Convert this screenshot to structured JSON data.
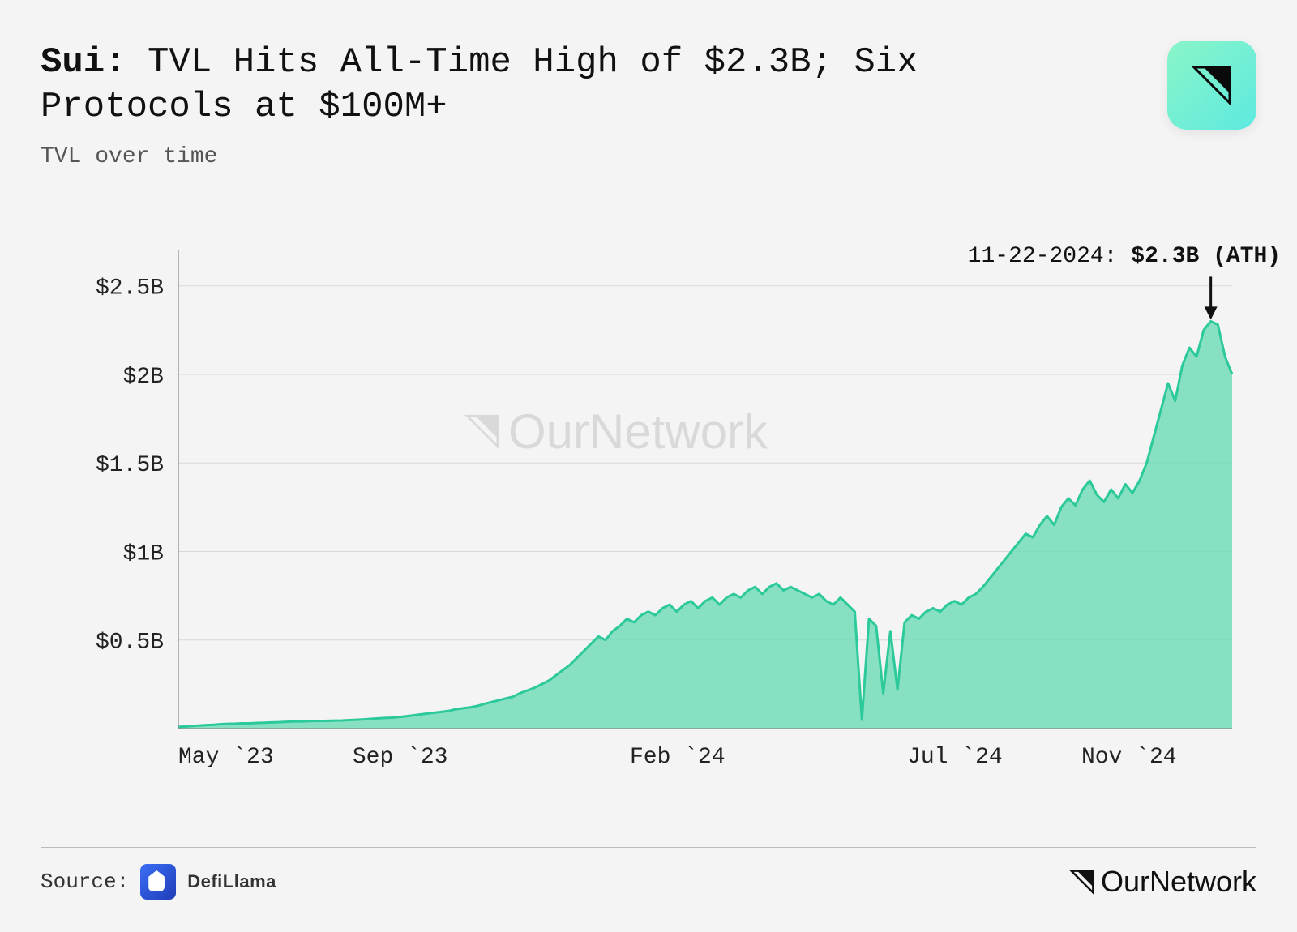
{
  "title_bold": "Sui:",
  "title_rest": " TVL Hits All-Time High of $2.3B; Six Protocols at $100M+",
  "subtitle": "TVL over time",
  "annotation_prefix": "11-22-2024: ",
  "annotation_bold": "$2.3B (ATH)",
  "source_label": "Source:",
  "source_name": "DefiLlama",
  "brand_name": "OurNetwork",
  "chart": {
    "type": "area",
    "line_color": "#2cc99a",
    "fill_color": "#74dcb8",
    "fill_opacity": 0.85,
    "line_width": 3,
    "background_color": "#f4f4f4",
    "grid_color": "#d8d8d8",
    "axis_color": "#888888",
    "tick_font_size": 28,
    "tick_color": "#222222",
    "ylim": [
      0,
      2.7
    ],
    "yticks": [
      0.5,
      1,
      1.5,
      2,
      2.5
    ],
    "ytick_labels": [
      "$0.5B",
      "$1B",
      "$1.5B",
      "$2B",
      "$2.5B"
    ],
    "x_range_months": 19,
    "xticks_months": [
      0,
      4,
      9,
      14,
      18
    ],
    "xtick_labels": [
      "May `23",
      "Sep `23",
      "Feb `24",
      "Jul `24",
      "Nov `24"
    ],
    "series": [
      0.01,
      0.012,
      0.015,
      0.018,
      0.02,
      0.022,
      0.025,
      0.027,
      0.028,
      0.03,
      0.03,
      0.032,
      0.033,
      0.035,
      0.036,
      0.038,
      0.04,
      0.04,
      0.042,
      0.043,
      0.043,
      0.044,
      0.045,
      0.046,
      0.048,
      0.05,
      0.052,
      0.055,
      0.058,
      0.06,
      0.062,
      0.065,
      0.07,
      0.075,
      0.08,
      0.085,
      0.09,
      0.095,
      0.1,
      0.11,
      0.115,
      0.12,
      0.128,
      0.14,
      0.15,
      0.16,
      0.17,
      0.18,
      0.2,
      0.215,
      0.23,
      0.25,
      0.27,
      0.3,
      0.33,
      0.36,
      0.4,
      0.44,
      0.48,
      0.52,
      0.5,
      0.55,
      0.58,
      0.62,
      0.6,
      0.64,
      0.66,
      0.64,
      0.68,
      0.7,
      0.66,
      0.7,
      0.72,
      0.68,
      0.72,
      0.74,
      0.7,
      0.74,
      0.76,
      0.74,
      0.78,
      0.8,
      0.76,
      0.8,
      0.82,
      0.78,
      0.8,
      0.78,
      0.76,
      0.74,
      0.76,
      0.72,
      0.7,
      0.74,
      0.7,
      0.66,
      0.05,
      0.62,
      0.58,
      0.2,
      0.55,
      0.22,
      0.6,
      0.64,
      0.62,
      0.66,
      0.68,
      0.66,
      0.7,
      0.72,
      0.7,
      0.74,
      0.76,
      0.8,
      0.85,
      0.9,
      0.95,
      1.0,
      1.05,
      1.1,
      1.08,
      1.15,
      1.2,
      1.15,
      1.25,
      1.3,
      1.26,
      1.35,
      1.4,
      1.32,
      1.28,
      1.35,
      1.3,
      1.38,
      1.33,
      1.4,
      1.5,
      1.65,
      1.8,
      1.95,
      1.85,
      2.05,
      2.15,
      2.1,
      2.25,
      2.3,
      2.28,
      2.1,
      2.0
    ],
    "ath_index": 145,
    "ath_value": 2.3
  },
  "watermark_color": "#d9d9d9",
  "title_fontsize": 44,
  "subtitle_fontsize": 28,
  "annotation_fontsize": 28
}
